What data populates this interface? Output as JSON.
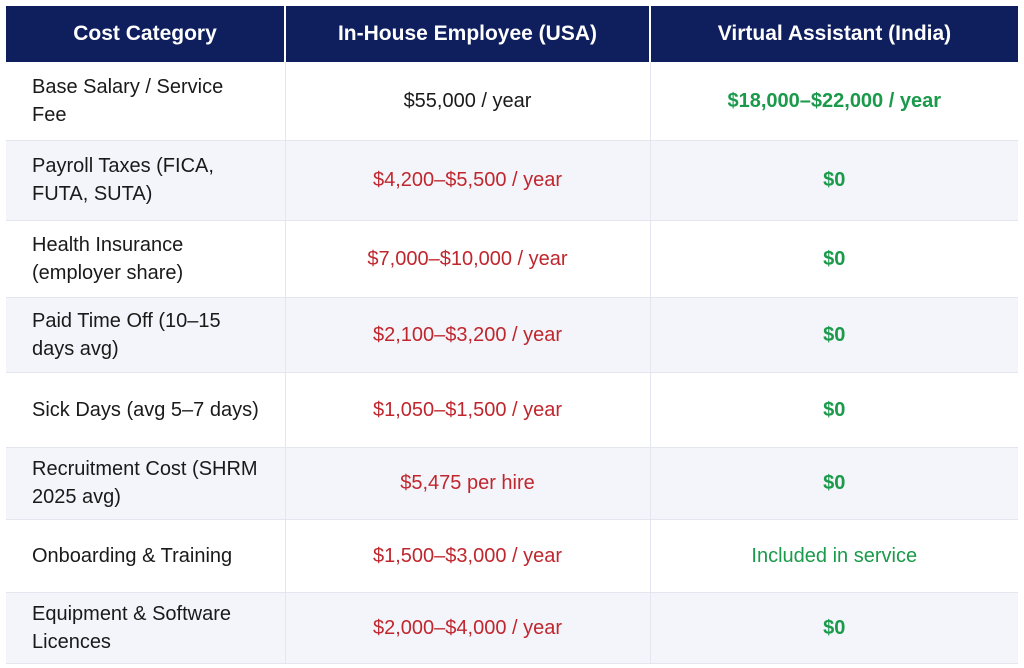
{
  "header": {
    "columns": [
      "Cost Category",
      "In-House Employee (USA)",
      "Virtual Assistant (India)"
    ]
  },
  "table": {
    "rows": [
      [
        "Base Salary / Service Fee",
        "$55,000 / year",
        "$18,000–$22,000 / year"
      ],
      [
        "Payroll Taxes (FICA, FUTA, SUTA)",
        "$4,200–$5,500 / year",
        "$0"
      ],
      [
        "Health Insurance (employer share)",
        "$7,000–$10,000 / year",
        "$0"
      ],
      [
        "Paid Time Off (10–15 days avg)",
        "$2,100–$3,200 / year",
        "$0"
      ],
      [
        "Sick Days (avg 5–7 days)",
        "$1,050–$1,500 / year",
        "$0"
      ],
      [
        "Recruitment Cost (SHRM 2025 avg)",
        "$5,475 per hire",
        "$0"
      ],
      [
        "Onboarding & Training",
        "$1,500–$3,000 / year",
        "Included in service"
      ],
      [
        "Equipment & Software Licences",
        "$2,000–$4,000 / year",
        "$0"
      ]
    ]
  }
}
